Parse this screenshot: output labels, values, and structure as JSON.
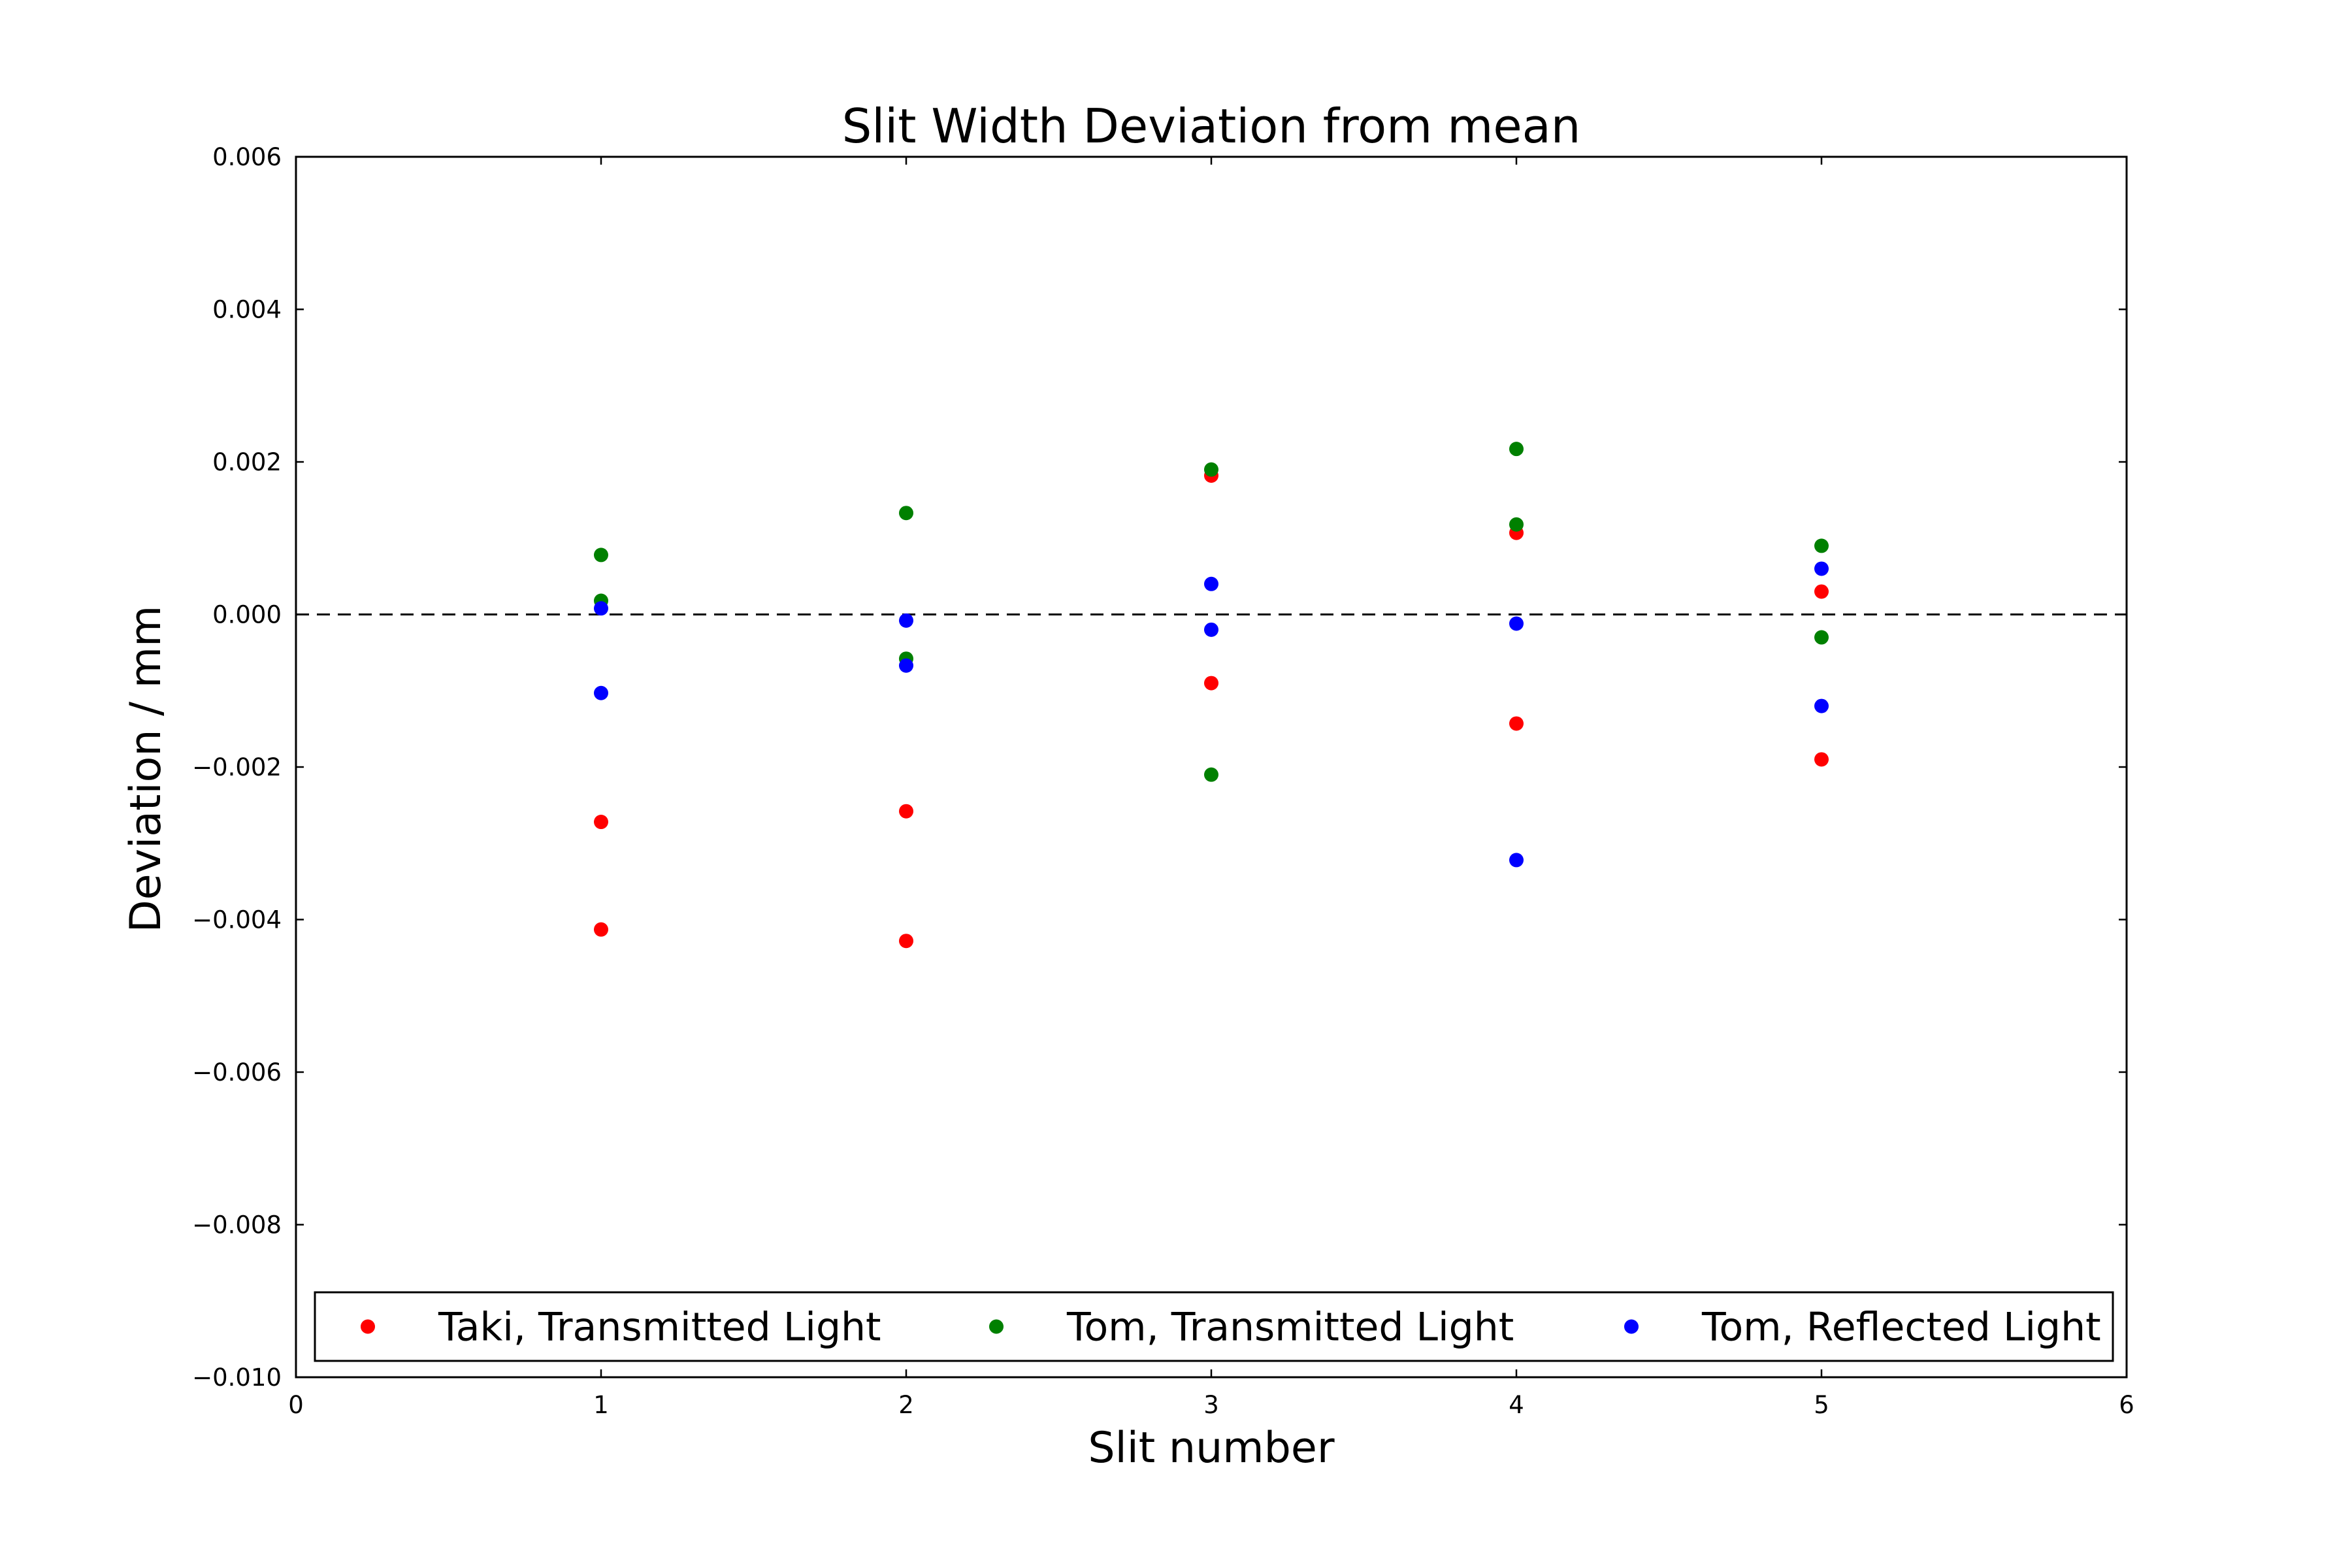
{
  "chart_data": {
    "type": "scatter",
    "title": "Slit Width Deviation from mean",
    "xlabel": "Slit number",
    "ylabel": "Deviation / mm",
    "xlim": [
      0,
      6
    ],
    "ylim": [
      -0.01,
      0.006
    ],
    "x_ticks": [
      0,
      1,
      2,
      3,
      4,
      5,
      6
    ],
    "x_tick_labels": [
      "0",
      "1",
      "2",
      "3",
      "4",
      "5",
      "6"
    ],
    "y_ticks": [
      0.006,
      0.004,
      0.002,
      0.0,
      -0.002,
      -0.004,
      -0.006,
      -0.008,
      -0.01
    ],
    "y_tick_labels": [
      "0.006",
      "0.004",
      "0.002",
      "0.000",
      "−0.002",
      "−0.004",
      "−0.006",
      "−0.008",
      "−0.010"
    ],
    "grid": false,
    "reference_line": {
      "y": 0,
      "style": "dashed",
      "color": "#000000"
    },
    "legend": {
      "position": "bottom",
      "columns": 3
    },
    "series": [
      {
        "name": "Taki, Transmitted Light",
        "color": "#ff0000",
        "points": [
          [
            1,
            -0.00272
          ],
          [
            1,
            -0.00413
          ],
          [
            2,
            -0.00258
          ],
          [
            2,
            -0.00428
          ],
          [
            3,
            0.00182
          ],
          [
            3,
            -0.0009
          ],
          [
            4,
            0.00107
          ],
          [
            4,
            -0.00143
          ],
          [
            5,
            0.0003
          ],
          [
            5,
            -0.0019
          ]
        ]
      },
      {
        "name": "Tom, Transmitted Light",
        "color": "#008000",
        "points": [
          [
            1,
            0.00078
          ],
          [
            1,
            0.00018
          ],
          [
            2,
            0.00133
          ],
          [
            2,
            -0.00058
          ],
          [
            3,
            0.0019
          ],
          [
            3,
            -0.0021
          ],
          [
            4,
            0.00217
          ],
          [
            4,
            0.00118
          ],
          [
            5,
            0.0009
          ],
          [
            5,
            -0.0003
          ]
        ]
      },
      {
        "name": "Tom, Reflected Light",
        "color": "#0000ff",
        "points": [
          [
            1,
            8e-05
          ],
          [
            1,
            -0.00103
          ],
          [
            2,
            -8e-05
          ],
          [
            2,
            -0.00067
          ],
          [
            3,
            0.0004
          ],
          [
            3,
            -0.0002
          ],
          [
            4,
            -0.00012
          ],
          [
            4,
            -0.00322
          ],
          [
            5,
            0.0006
          ],
          [
            5,
            -0.0012
          ]
        ]
      }
    ]
  }
}
